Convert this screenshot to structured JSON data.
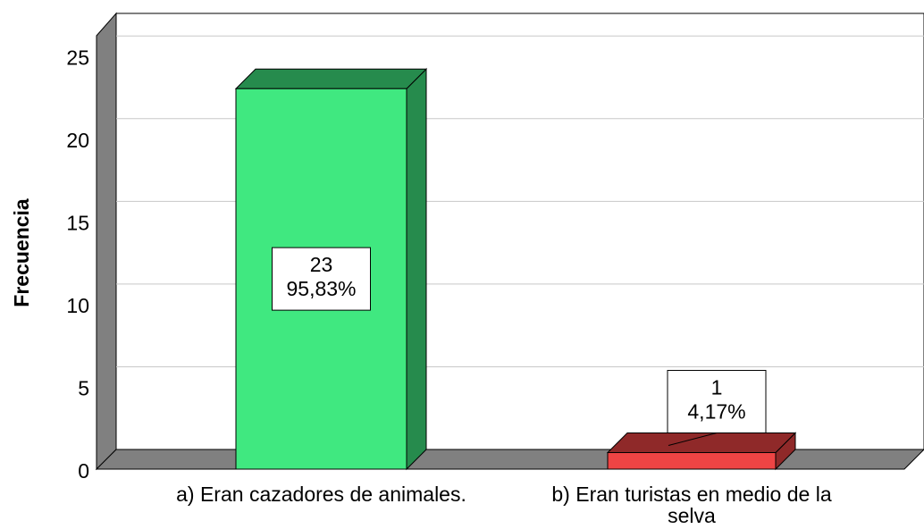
{
  "chart_data": {
    "type": "bar3d",
    "y_label": "Frecuencia",
    "categories": [
      "a) Eran cazadores de animales.",
      "b) Eran turistas en medio de la selva"
    ],
    "values": [
      23,
      1
    ],
    "percentages": [
      95.83,
      4.17
    ],
    "percentage_labels": [
      "95,83%",
      "4,17%"
    ],
    "colors": [
      "#40e880",
      "#ee4444"
    ],
    "ylim": [
      0,
      26.2
    ],
    "yticks": [
      0,
      5,
      10,
      15,
      20,
      25
    ],
    "grid": true
  }
}
